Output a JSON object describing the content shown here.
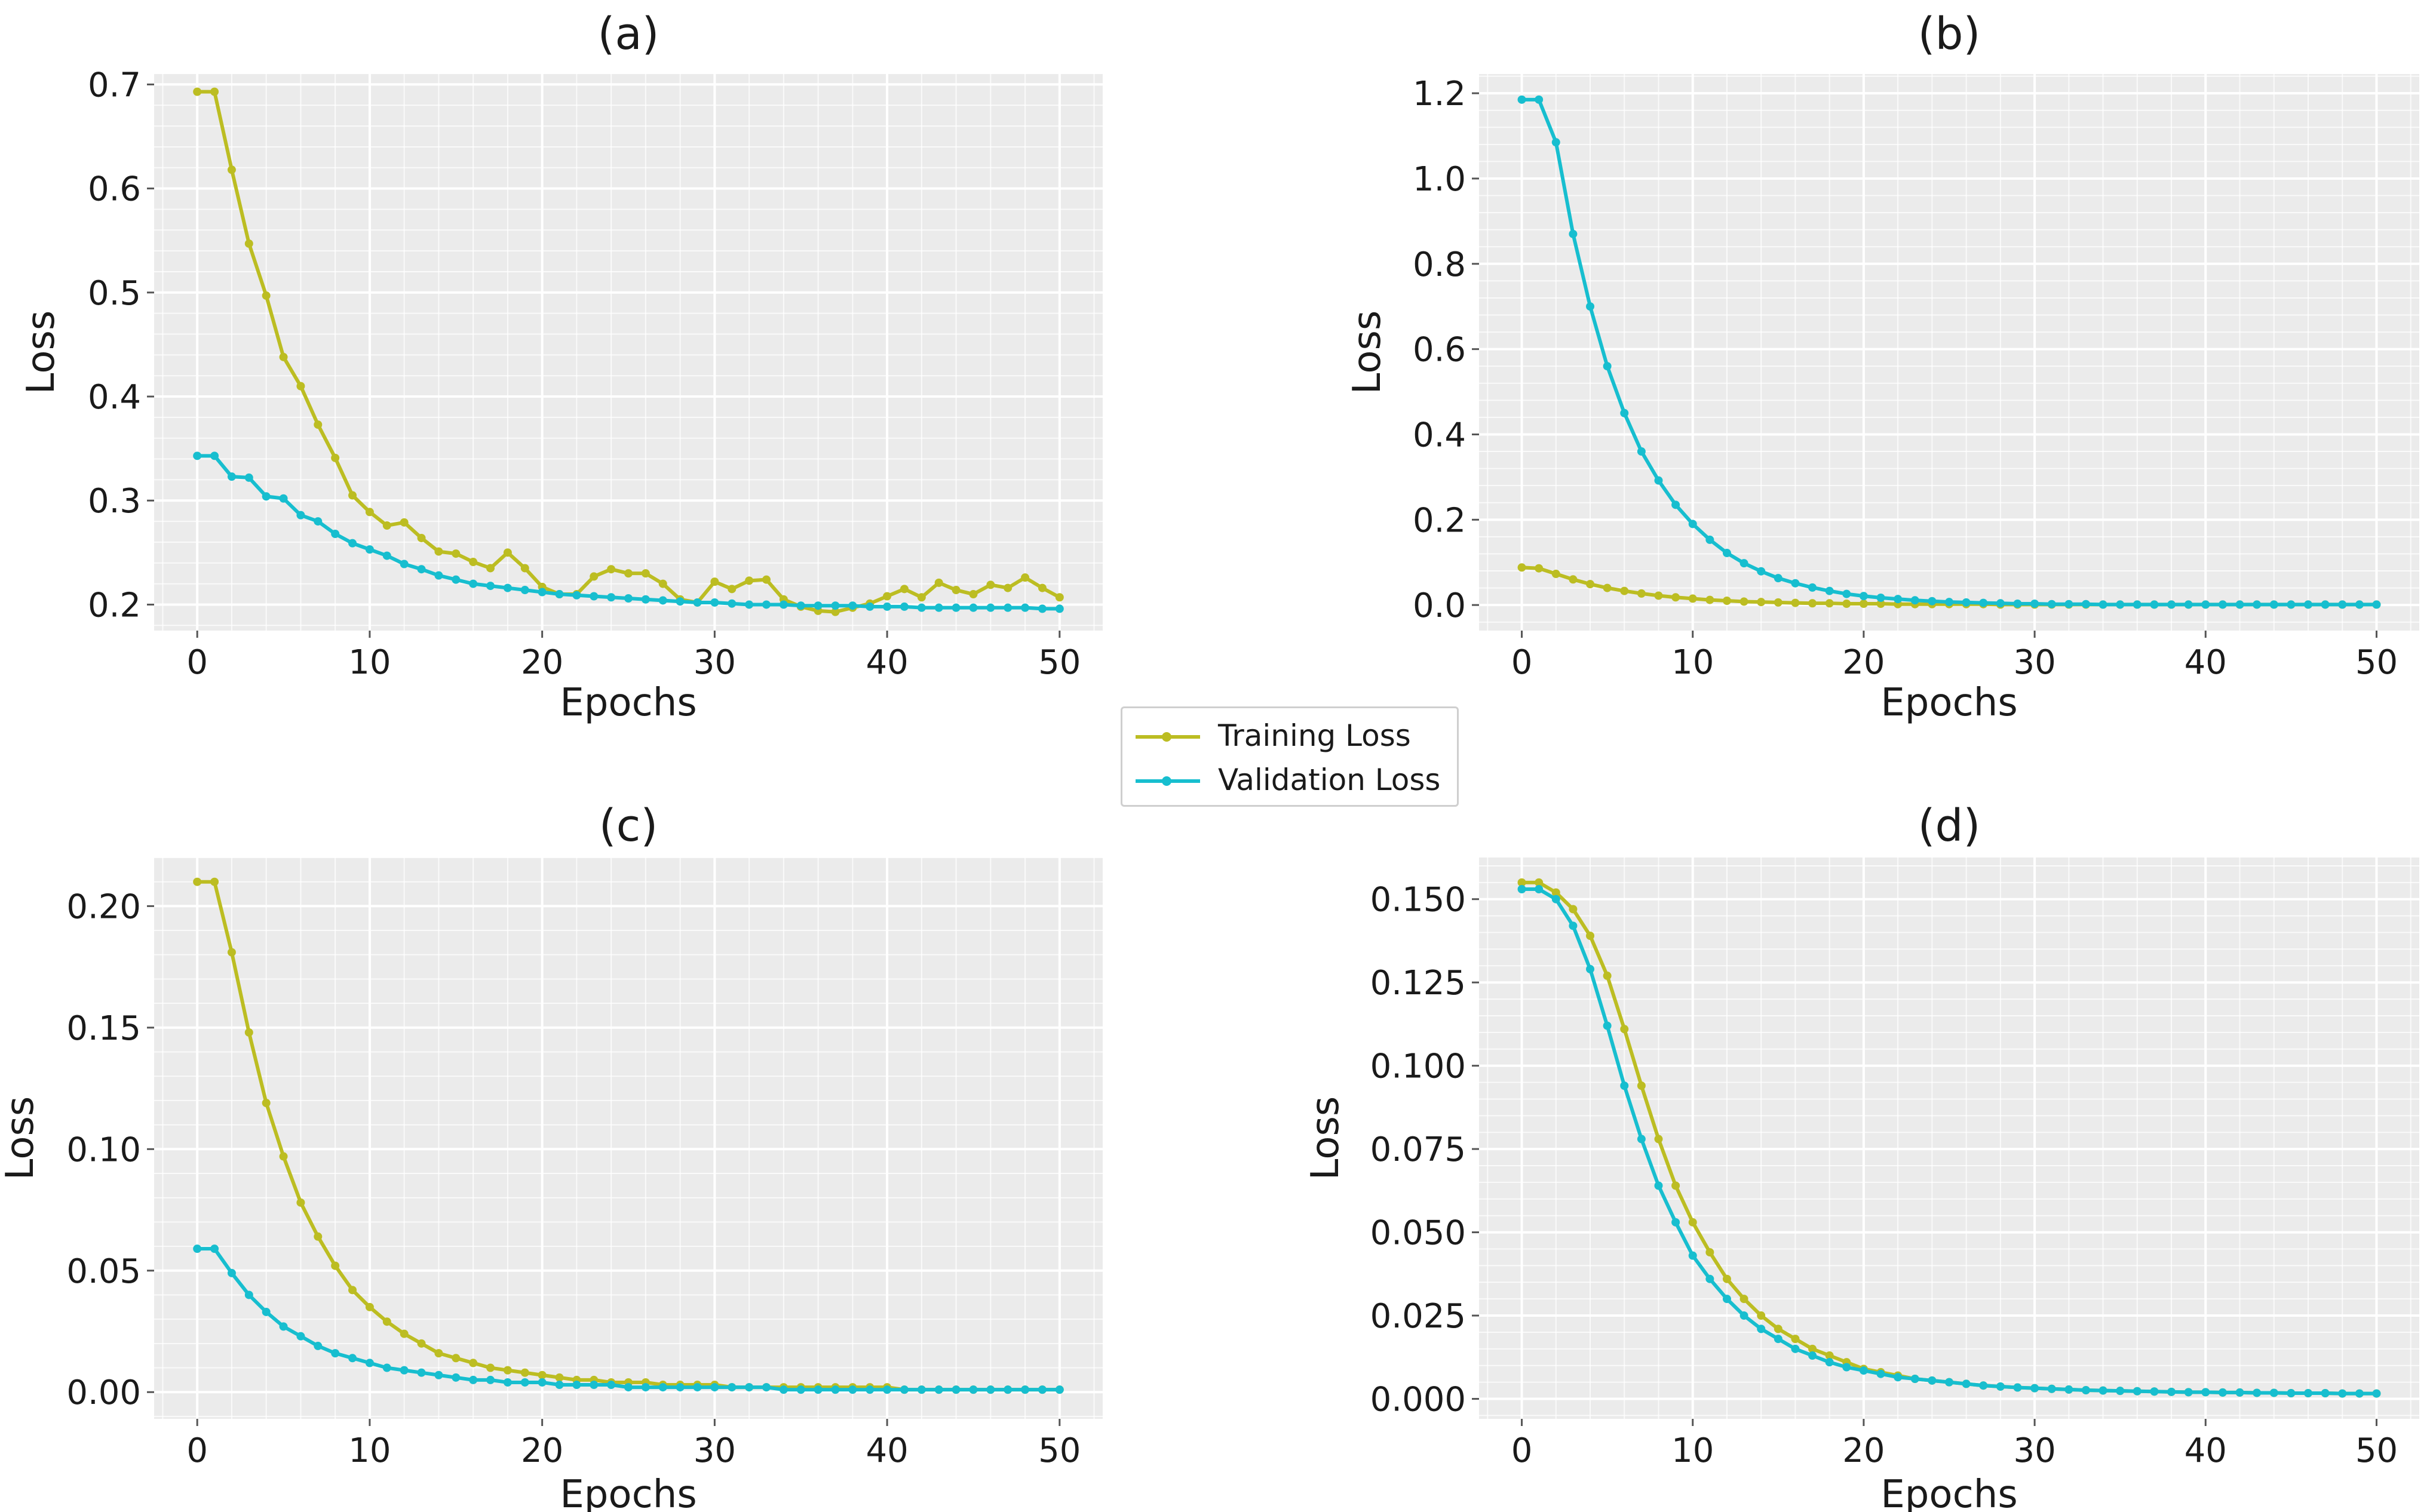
{
  "colors": {
    "training": "#BCBD22",
    "validation": "#17BECF",
    "plot_bg": "#EBEBEB",
    "grid": "#FFFFFF"
  },
  "legend": {
    "training_label": "Training Loss",
    "validation_label": "Validation Loss"
  },
  "chart_data": [
    {
      "type": "line",
      "title": "(a)",
      "xlabel": "Epochs",
      "ylabel": "Loss",
      "xlim": [
        -2.5,
        52.5
      ],
      "ylim": [
        0.175,
        0.71
      ],
      "xticks": [
        0,
        10,
        20,
        30,
        40,
        50
      ],
      "xtick_labels": [
        "0",
        "10",
        "20",
        "30",
        "40",
        "50"
      ],
      "yticks": [
        0.2,
        0.3,
        0.4,
        0.5,
        0.6,
        0.7
      ],
      "ytick_labels": [
        "0.2",
        "0.3",
        "0.4",
        "0.5",
        "0.6",
        "0.7"
      ],
      "x": [
        0,
        1,
        2,
        3,
        4,
        5,
        6,
        7,
        8,
        9,
        10,
        11,
        12,
        13,
        14,
        15,
        16,
        17,
        18,
        19,
        20,
        21,
        22,
        23,
        24,
        25,
        26,
        27,
        28,
        29,
        30,
        31,
        32,
        33,
        34,
        35,
        36,
        37,
        38,
        39,
        40,
        41,
        42,
        43,
        44,
        45,
        46,
        47,
        48,
        49,
        50
      ],
      "series": [
        {
          "name": "Training Loss",
          "values": [
            0.693,
            0.693,
            0.618,
            0.547,
            0.497,
            0.438,
            0.41,
            0.373,
            0.341,
            0.305,
            0.289,
            0.276,
            0.279,
            0.264,
            0.251,
            0.249,
            0.241,
            0.235,
            0.25,
            0.235,
            0.217,
            0.21,
            0.21,
            0.227,
            0.234,
            0.23,
            0.23,
            0.22,
            0.205,
            0.202,
            0.222,
            0.215,
            0.223,
            0.224,
            0.205,
            0.198,
            0.194,
            0.193,
            0.197,
            0.201,
            0.208,
            0.215,
            0.207,
            0.221,
            0.214,
            0.21,
            0.219,
            0.216,
            0.226,
            0.216,
            0.207
          ]
        },
        {
          "name": "Validation Loss",
          "values": [
            0.343,
            0.343,
            0.323,
            0.322,
            0.304,
            0.302,
            0.286,
            0.28,
            0.268,
            0.259,
            0.253,
            0.247,
            0.239,
            0.234,
            0.228,
            0.224,
            0.22,
            0.218,
            0.216,
            0.214,
            0.212,
            0.21,
            0.209,
            0.208,
            0.207,
            0.206,
            0.205,
            0.204,
            0.203,
            0.202,
            0.202,
            0.201,
            0.2,
            0.2,
            0.2,
            0.199,
            0.199,
            0.199,
            0.199,
            0.198,
            0.198,
            0.198,
            0.197,
            0.197,
            0.197,
            0.197,
            0.197,
            0.197,
            0.197,
            0.196,
            0.196
          ]
        }
      ]
    },
    {
      "type": "line",
      "title": "(b)",
      "xlabel": "Epochs",
      "ylabel": "Loss",
      "xlim": [
        -2.5,
        52.5
      ],
      "ylim": [
        -0.06,
        1.245
      ],
      "xticks": [
        0,
        10,
        20,
        30,
        40,
        50
      ],
      "xtick_labels": [
        "0",
        "10",
        "20",
        "30",
        "40",
        "50"
      ],
      "yticks": [
        0.0,
        0.2,
        0.4,
        0.6,
        0.8,
        1.0,
        1.2
      ],
      "ytick_labels": [
        "0.0",
        "0.2",
        "0.4",
        "0.6",
        "0.8",
        "1.0",
        "1.2"
      ],
      "x": [
        0,
        1,
        2,
        3,
        4,
        5,
        6,
        7,
        8,
        9,
        10,
        11,
        12,
        13,
        14,
        15,
        16,
        17,
        18,
        19,
        20,
        21,
        22,
        23,
        24,
        25,
        26,
        27,
        28,
        29,
        30,
        31,
        32,
        33,
        34,
        35,
        36,
        37,
        38,
        39,
        40,
        41,
        42,
        43,
        44,
        45,
        46,
        47,
        48,
        49,
        50
      ],
      "series": [
        {
          "name": "Training Loss",
          "values": [
            0.088,
            0.086,
            0.073,
            0.06,
            0.049,
            0.04,
            0.033,
            0.027,
            0.022,
            0.018,
            0.015,
            0.012,
            0.01,
            0.008,
            0.007,
            0.006,
            0.005,
            0.004,
            0.004,
            0.003,
            0.003,
            0.003,
            0.002,
            0.002,
            0.002,
            0.002,
            0.002,
            0.002,
            0.001,
            0.001,
            0.001,
            0.001,
            0.001,
            0.001,
            0.001,
            0.001,
            0.001,
            0.001,
            0.001,
            0.001,
            0.001,
            0.001,
            0.001,
            0.001,
            0.001,
            0.001,
            0.001,
            0.001,
            0.001,
            0.001,
            0.001
          ]
        },
        {
          "name": "Validation Loss",
          "values": [
            1.185,
            1.185,
            1.085,
            0.87,
            0.7,
            0.56,
            0.45,
            0.36,
            0.292,
            0.235,
            0.19,
            0.153,
            0.122,
            0.098,
            0.079,
            0.063,
            0.051,
            0.041,
            0.033,
            0.026,
            0.021,
            0.017,
            0.014,
            0.011,
            0.009,
            0.007,
            0.006,
            0.005,
            0.004,
            0.003,
            0.003,
            0.002,
            0.002,
            0.002,
            0.001,
            0.001,
            0.001,
            0.001,
            0.001,
            0.001,
            0.001,
            0.001,
            0.001,
            0.001,
            0.001,
            0.001,
            0.001,
            0.001,
            0.001,
            0.001,
            0.001
          ]
        }
      ]
    },
    {
      "type": "line",
      "title": "(c)",
      "xlabel": "Epochs",
      "ylabel": "Loss",
      "xlim": [
        -2.5,
        52.5
      ],
      "ylim": [
        -0.011,
        0.22
      ],
      "xticks": [
        0,
        10,
        20,
        30,
        40,
        50
      ],
      "xtick_labels": [
        "0",
        "10",
        "20",
        "30",
        "40",
        "50"
      ],
      "yticks": [
        0.0,
        0.05,
        0.1,
        0.15,
        0.2
      ],
      "ytick_labels": [
        "0.00",
        "0.05",
        "0.10",
        "0.15",
        "0.20"
      ],
      "x": [
        0,
        1,
        2,
        3,
        4,
        5,
        6,
        7,
        8,
        9,
        10,
        11,
        12,
        13,
        14,
        15,
        16,
        17,
        18,
        19,
        20,
        21,
        22,
        23,
        24,
        25,
        26,
        27,
        28,
        29,
        30,
        31,
        32,
        33,
        34,
        35,
        36,
        37,
        38,
        39,
        40,
        41,
        42,
        43,
        44,
        45,
        46,
        47,
        48,
        49,
        50
      ],
      "series": [
        {
          "name": "Training Loss",
          "values": [
            0.21,
            0.21,
            0.181,
            0.148,
            0.119,
            0.097,
            0.078,
            0.064,
            0.052,
            0.042,
            0.035,
            0.029,
            0.024,
            0.02,
            0.016,
            0.014,
            0.012,
            0.01,
            0.009,
            0.008,
            0.007,
            0.006,
            0.005,
            0.005,
            0.004,
            0.004,
            0.004,
            0.003,
            0.003,
            0.003,
            0.003,
            0.002,
            0.002,
            0.002,
            0.002,
            0.002,
            0.002,
            0.002,
            0.002,
            0.002,
            0.002,
            0.001,
            0.001,
            0.001,
            0.001,
            0.001,
            0.001,
            0.001,
            0.001,
            0.001,
            0.001
          ]
        },
        {
          "name": "Validation Loss",
          "values": [
            0.059,
            0.059,
            0.049,
            0.04,
            0.033,
            0.027,
            0.023,
            0.019,
            0.016,
            0.014,
            0.012,
            0.01,
            0.009,
            0.008,
            0.007,
            0.006,
            0.005,
            0.005,
            0.004,
            0.004,
            0.004,
            0.003,
            0.003,
            0.003,
            0.003,
            0.002,
            0.002,
            0.002,
            0.002,
            0.002,
            0.002,
            0.002,
            0.002,
            0.002,
            0.001,
            0.001,
            0.001,
            0.001,
            0.001,
            0.001,
            0.001,
            0.001,
            0.001,
            0.001,
            0.001,
            0.001,
            0.001,
            0.001,
            0.001,
            0.001,
            0.001
          ]
        }
      ]
    },
    {
      "type": "line",
      "title": "(d)",
      "xlabel": "Epochs",
      "ylabel": "Loss",
      "xlim": [
        -2.5,
        52.5
      ],
      "ylim": [
        -0.006,
        0.1625
      ],
      "xticks": [
        0,
        10,
        20,
        30,
        40,
        50
      ],
      "xtick_labels": [
        "0",
        "10",
        "20",
        "30",
        "40",
        "50"
      ],
      "yticks": [
        0.0,
        0.025,
        0.05,
        0.075,
        0.1,
        0.125,
        0.15
      ],
      "ytick_labels": [
        "0.000",
        "0.025",
        "0.050",
        "0.075",
        "0.100",
        "0.125",
        "0.150"
      ],
      "x": [
        0,
        1,
        2,
        3,
        4,
        5,
        6,
        7,
        8,
        9,
        10,
        11,
        12,
        13,
        14,
        15,
        16,
        17,
        18,
        19,
        20,
        21,
        22,
        23,
        24,
        25,
        26,
        27,
        28,
        29,
        30,
        31,
        32,
        33,
        34,
        35,
        36,
        37,
        38,
        39,
        40,
        41,
        42,
        43,
        44,
        45,
        46,
        47,
        48,
        49,
        50
      ],
      "series": [
        {
          "name": "Training Loss",
          "values": [
            0.155,
            0.155,
            0.152,
            0.147,
            0.139,
            0.127,
            0.111,
            0.094,
            0.078,
            0.064,
            0.053,
            0.044,
            0.036,
            0.03,
            0.025,
            0.021,
            0.018,
            0.015,
            0.013,
            0.011,
            0.009,
            0.008,
            0.007,
            0.006,
            0.0055,
            0.005,
            0.0045,
            0.004,
            0.0037,
            0.0034,
            0.0032,
            0.003,
            0.0028,
            0.0026,
            0.0025,
            0.0024,
            0.0023,
            0.0022,
            0.0021,
            0.002,
            0.002,
            0.0019,
            0.0019,
            0.0018,
            0.0018,
            0.0017,
            0.0017,
            0.0017,
            0.0016,
            0.0016,
            0.0016
          ]
        },
        {
          "name": "Validation Loss",
          "values": [
            0.153,
            0.153,
            0.15,
            0.142,
            0.129,
            0.112,
            0.094,
            0.078,
            0.064,
            0.053,
            0.043,
            0.036,
            0.03,
            0.025,
            0.021,
            0.018,
            0.015,
            0.013,
            0.011,
            0.0095,
            0.0085,
            0.0075,
            0.0065,
            0.006,
            0.0055,
            0.005,
            0.0045,
            0.004,
            0.0037,
            0.0034,
            0.0032,
            0.003,
            0.0028,
            0.0026,
            0.0025,
            0.0024,
            0.0023,
            0.0022,
            0.0021,
            0.002,
            0.002,
            0.0019,
            0.0019,
            0.0018,
            0.0018,
            0.0017,
            0.0017,
            0.0017,
            0.0016,
            0.0016,
            0.0016
          ]
        }
      ]
    }
  ]
}
